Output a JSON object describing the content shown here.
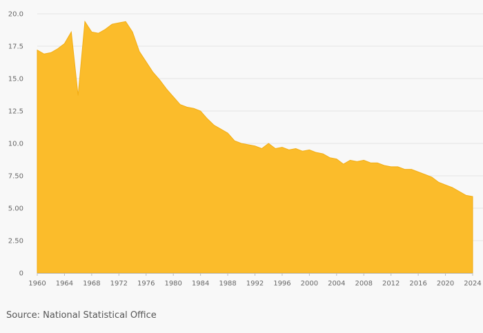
{
  "chart_data": {
    "type": "area",
    "title": "",
    "xlabel": "",
    "ylabel": "",
    "xlim": [
      1960,
      2024
    ],
    "ylim": [
      0,
      20
    ],
    "x_ticks": [
      1960,
      1964,
      1968,
      1972,
      1976,
      1980,
      1984,
      1988,
      1992,
      1996,
      2000,
      2004,
      2008,
      2012,
      2016,
      2020,
      2024
    ],
    "y_ticks": [
      0,
      2.5,
      5,
      7.5,
      10,
      12.5,
      15,
      17.5,
      20
    ],
    "y_tick_labels": [
      "0",
      "2.50",
      "5.00",
      "7.50",
      "10.0",
      "12.5",
      "15.0",
      "17.5",
      "20.0"
    ],
    "grid": true,
    "legend": "none",
    "color": "#fbbc2b",
    "x": [
      1960,
      1961,
      1962,
      1963,
      1964,
      1965,
      1966,
      1967,
      1968,
      1969,
      1970,
      1971,
      1972,
      1973,
      1974,
      1975,
      1976,
      1977,
      1978,
      1979,
      1980,
      1981,
      1982,
      1983,
      1984,
      1985,
      1986,
      1987,
      1988,
      1989,
      1990,
      1991,
      1992,
      1993,
      1994,
      1995,
      1996,
      1997,
      1998,
      1999,
      2000,
      2001,
      2002,
      2003,
      2004,
      2005,
      2006,
      2007,
      2008,
      2009,
      2010,
      2011,
      2012,
      2013,
      2014,
      2015,
      2016,
      2017,
      2018,
      2019,
      2020,
      2021,
      2022,
      2023,
      2024
    ],
    "values": [
      17.2,
      16.9,
      17.0,
      17.3,
      17.7,
      18.6,
      13.7,
      19.4,
      18.6,
      18.5,
      18.8,
      19.2,
      19.3,
      19.4,
      18.6,
      17.1,
      16.3,
      15.5,
      14.9,
      14.2,
      13.6,
      13.0,
      12.8,
      12.7,
      12.5,
      11.9,
      11.4,
      11.1,
      10.8,
      10.2,
      10.0,
      9.9,
      9.8,
      9.6,
      10.0,
      9.6,
      9.7,
      9.5,
      9.6,
      9.4,
      9.5,
      9.3,
      9.2,
      8.9,
      8.8,
      8.4,
      8.7,
      8.6,
      8.7,
      8.5,
      8.5,
      8.3,
      8.2,
      8.2,
      8.0,
      8.0,
      7.8,
      7.6,
      7.4,
      7.0,
      6.8,
      6.6,
      6.3,
      6.0,
      5.9
    ]
  },
  "footer": {
    "source": "Source: National Statistical Office"
  }
}
